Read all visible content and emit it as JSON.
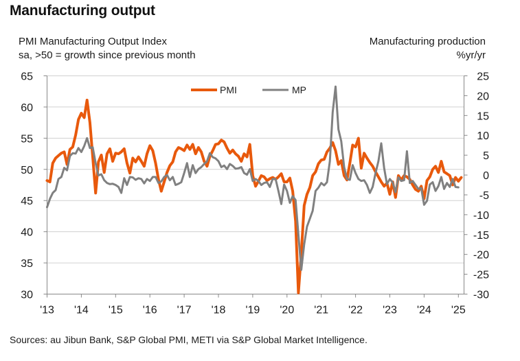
{
  "chart_data": {
    "type": "line",
    "title": "Manufacturing output",
    "left_axis": {
      "label_line1": "PMI Manufacturing Output Index",
      "label_line2": "sa, >50 = growth since previous month",
      "range": [
        30,
        65
      ],
      "ticks": [
        "65",
        "60",
        "55",
        "50",
        "45",
        "40",
        "35",
        "30"
      ],
      "tick_values": [
        65,
        60,
        55,
        50,
        45,
        40,
        35,
        30
      ]
    },
    "right_axis": {
      "label_line1": "Manufacturing production",
      "label_line2": "%yr/yr",
      "range": [
        -30,
        25
      ],
      "ticks": [
        "25",
        "20",
        "15",
        "10",
        "5",
        "0",
        "-5",
        "-10",
        "-15",
        "-20",
        "-25",
        "-30"
      ],
      "tick_values": [
        25,
        20,
        15,
        10,
        5,
        0,
        -5,
        -10,
        -15,
        -20,
        -25,
        -30
      ]
    },
    "x_axis": {
      "start": "2013-01",
      "end": "2025-02",
      "frequency": "monthly",
      "ticks": [
        "'13",
        "'14",
        "'15",
        "'16",
        "'17",
        "'18",
        "'19",
        "'20",
        "'21",
        "'22",
        "'23",
        "'24",
        "'25"
      ],
      "tick_years": [
        2013,
        2014,
        2015,
        2016,
        2017,
        2018,
        2019,
        2020,
        2021,
        2022,
        2023,
        2024,
        2025
      ]
    },
    "grid": true,
    "legend": {
      "position": "top-center",
      "entries": [
        "PMI",
        "MP"
      ]
    },
    "series": [
      {
        "name": "PMI",
        "axis": "left",
        "color": "#e8590c",
        "values": [
          48.2,
          48.0,
          51.0,
          51.8,
          52.2,
          52.6,
          52.8,
          50.8,
          53.2,
          53.6,
          55.5,
          58.0,
          59.0,
          58.3,
          61.1,
          57.5,
          52.0,
          46.2,
          51.2,
          52.3,
          49.5,
          52.5,
          53.3,
          51.3,
          52.6,
          52.5,
          52.8,
          53.3,
          51.0,
          49.4,
          51.8,
          51.2,
          52.0,
          51.3,
          50.5,
          52.5,
          53.8,
          53.0,
          51.0,
          48.4,
          46.5,
          48.0,
          49.5,
          50.6,
          51.2,
          52.8,
          53.5,
          53.3,
          53.0,
          53.9,
          53.2,
          54.0,
          52.5,
          53.5,
          52.8,
          51.3,
          50.5,
          52.1,
          53.0,
          54.0,
          54.1,
          54.7,
          54.4,
          53.4,
          52.6,
          53.1,
          52.5,
          52.1,
          51.3,
          52.5,
          52.0,
          54.0,
          49.0,
          47.3,
          48.1,
          49.0,
          48.8,
          48.2,
          48.5,
          48.7,
          48.4,
          48.8,
          49.3,
          48.0,
          48.0,
          48.6,
          46.5,
          41.7,
          30.2,
          36.5,
          44.2,
          46.0,
          47.1,
          49.0,
          49.6,
          50.9,
          51.5,
          51.6,
          52.8,
          53.4,
          54.3,
          53.0,
          50.8,
          51.4,
          49.0,
          48.3,
          51.0,
          53.9,
          53.6,
          55.0,
          50.2,
          52.6,
          51.8,
          51.1,
          50.5,
          49.6,
          48.8,
          48.0,
          47.3,
          47.8,
          46.0,
          48.0,
          45.5,
          49.0,
          48.3,
          49.0,
          48.8,
          48.4,
          47.5,
          46.8,
          46.5,
          47.3,
          45.3,
          48.2,
          48.8,
          50.0,
          50.5,
          49.5,
          51.3,
          49.6,
          49.3,
          49.0,
          47.5,
          48.7,
          48.1,
          48.7
        ]
      },
      {
        "name": "MP",
        "axis": "right",
        "color": "#808080",
        "values": [
          -8.1,
          -6.0,
          -4.5,
          -3.8,
          -1.0,
          -0.5,
          1.8,
          1.2,
          4.8,
          5.5,
          5.4,
          6.8,
          5.8,
          7.3,
          9.3,
          6.8,
          7.0,
          3.0,
          -0.1,
          0.2,
          -1.3,
          -2.0,
          -2.3,
          -2.2,
          -2.5,
          -3.0,
          -4.5,
          -0.8,
          -2.5,
          -0.5,
          -0.6,
          -1.2,
          -0.8,
          -1.0,
          -2.1,
          -1.0,
          -1.5,
          -0.5,
          -0.5,
          -2.0,
          -1.6,
          -0.5,
          0.0,
          -1.3,
          -0.5,
          -2.5,
          -2.2,
          -1.8,
          0.5,
          3.0,
          -0.5,
          2.5,
          0.5,
          1.5,
          2.0,
          2.8,
          3.5,
          5.5,
          4.5,
          4.2,
          3.5,
          2.0,
          2.4,
          1.5,
          2.8,
          2.3,
          1.6,
          1.7,
          2.0,
          0.5,
          0.1,
          1.5,
          -1.5,
          -1.0,
          -1.5,
          -2.5,
          -2.0,
          -1.8,
          -3.0,
          -1.0,
          -1.0,
          -4.0,
          -7.3,
          -2.4,
          -4.0,
          -7.0,
          -5.3,
          -6.3,
          -15.0,
          -23.9,
          -17.5,
          -13.0,
          -11.0,
          -9.0,
          -4.0,
          -3.2,
          -2.0,
          -2.6,
          -1.8,
          3.5,
          15.8,
          22.3,
          11.5,
          8.5,
          2.0,
          -1.0,
          -1.2,
          2.5,
          0.5,
          -1.0,
          -1.5,
          -1.3,
          -2.5,
          -4.5,
          -3.0,
          0.5,
          3.5,
          8.0,
          1.8,
          -2.3,
          -1.0,
          -1.9,
          -4.3,
          -0.6,
          -1.5,
          -1.3,
          6.0,
          -2.0,
          -1.5,
          -2.5,
          -3.5,
          -3.3,
          -7.5,
          -6.5,
          -2.4,
          -1.8,
          -4.0,
          -2.8,
          -0.5,
          -3.5,
          -2.0,
          -3.0,
          -1.0,
          -3.0,
          -3.1
        ]
      }
    ]
  },
  "footer": {
    "source": "Sources: au Jibun Bank, S&P Global PMI, METI via S&P Global Market Intelligence."
  }
}
